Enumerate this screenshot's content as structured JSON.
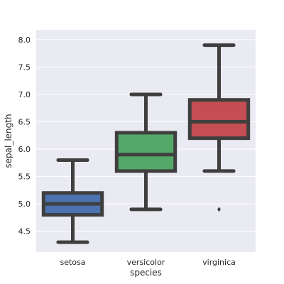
{
  "chart_data": {
    "type": "box",
    "title": "",
    "xlabel": "species",
    "ylabel": "sepal_length",
    "ylim": [
      4.12,
      8.18
    ],
    "yticks": [
      4.5,
      5.0,
      5.5,
      6.0,
      6.5,
      7.0,
      7.5,
      8.0
    ],
    "ytick_labels": [
      "4.5",
      "5.0",
      "5.5",
      "6.0",
      "6.5",
      "7.0",
      "7.5",
      "8.0"
    ],
    "grid": true,
    "categories": [
      "setosa",
      "versicolor",
      "virginica"
    ],
    "boxes": [
      {
        "category": "setosa",
        "whisker_low": 4.3,
        "q1": 4.8,
        "median": 5.0,
        "q3": 5.2,
        "whisker_high": 5.8,
        "outliers": [],
        "color": "#4c72b0"
      },
      {
        "category": "versicolor",
        "whisker_low": 4.9,
        "q1": 5.6,
        "median": 5.9,
        "q3": 6.3,
        "whisker_high": 7.0,
        "outliers": [],
        "color": "#55a868"
      },
      {
        "category": "virginica",
        "whisker_low": 5.6,
        "q1": 6.2,
        "median": 6.5,
        "q3": 6.9,
        "whisker_high": 7.9,
        "outliers": [
          4.9
        ],
        "color": "#c44e52"
      }
    ],
    "style": {
      "background": "#eaeaf2",
      "grid_color": "#ffffff",
      "box_edge": "#3f3f3f"
    }
  }
}
